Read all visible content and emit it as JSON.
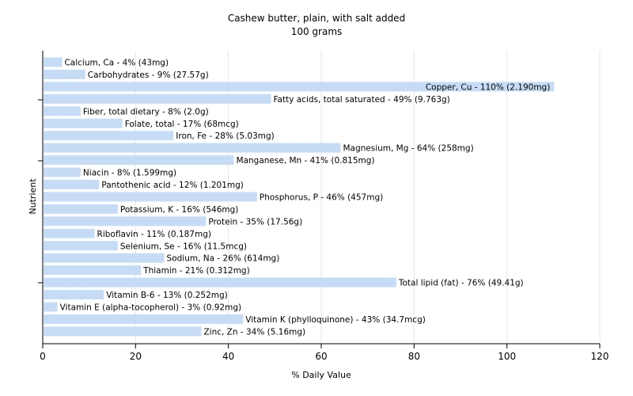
{
  "chart_data": {
    "type": "bar",
    "orientation": "horizontal",
    "title": "Cashew butter, plain, with salt added",
    "subtitle": "100 grams",
    "xlabel": "% Daily Value",
    "ylabel": "Nutrient",
    "xlim": [
      0,
      120
    ],
    "xticks": [
      0,
      20,
      40,
      60,
      80,
      100,
      120
    ],
    "grid": true,
    "bar_color": "#c6dcf6",
    "categories": [
      "Calcium, Ca",
      "Carbohydrates",
      "Copper, Cu",
      "Fatty acids, total saturated",
      "Fiber, total dietary",
      "Folate, total",
      "Iron, Fe",
      "Magnesium, Mg",
      "Manganese, Mn",
      "Niacin",
      "Pantothenic acid",
      "Phosphorus, P",
      "Potassium, K",
      "Protein",
      "Riboflavin",
      "Selenium, Se",
      "Sodium, Na",
      "Thiamin",
      "Total lipid (fat)",
      "Vitamin B-6",
      "Vitamin E (alpha-tocopherol)",
      "Vitamin K (phylloquinone)",
      "Zinc, Zn"
    ],
    "values": [
      4,
      9,
      110,
      49,
      8,
      17,
      28,
      64,
      41,
      8,
      12,
      46,
      16,
      35,
      11,
      16,
      26,
      21,
      76,
      13,
      3,
      43,
      34
    ],
    "labels": [
      "Calcium, Ca - 4% (43mg)",
      "Carbohydrates - 9% (27.57g)",
      "Copper, Cu - 110% (2.190mg)",
      "Fatty acids, total saturated - 49% (9.763g)",
      "Fiber, total dietary - 8% (2.0g)",
      "Folate, total - 17% (68mcg)",
      "Iron, Fe - 28% (5.03mg)",
      "Magnesium, Mg - 64% (258mg)",
      "Manganese, Mn - 41% (0.815mg)",
      "Niacin - 8% (1.599mg)",
      "Pantothenic acid - 12% (1.201mg)",
      "Phosphorus, P - 46% (457mg)",
      "Potassium, K - 16% (546mg)",
      "Protein - 35% (17.56g)",
      "Riboflavin - 11% (0.187mg)",
      "Selenium, Se - 16% (11.5mcg)",
      "Sodium, Na - 26% (614mg)",
      "Thiamin - 21% (0.312mg)",
      "Total lipid (fat) - 76% (49.41g)",
      "Vitamin B-6 - 13% (0.252mg)",
      "Vitamin E (alpha-tocopherol) - 3% (0.92mg)",
      "Vitamin K (phylloquinone) - 43% (34.7mcg)",
      "Zinc, Zn - 34% (5.16mg)"
    ]
  }
}
